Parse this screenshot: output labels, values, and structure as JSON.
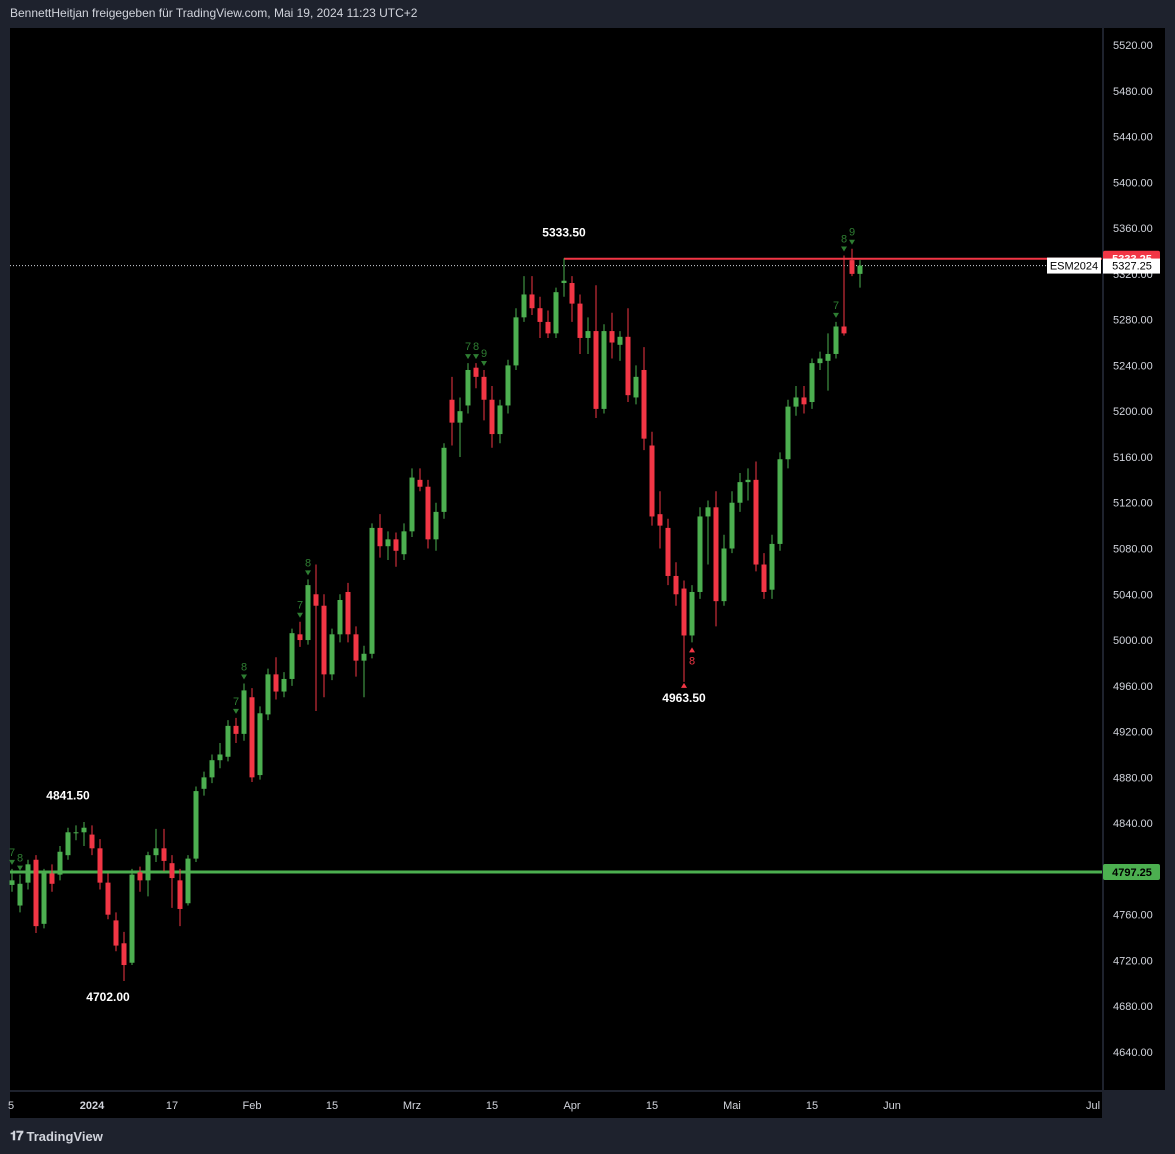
{
  "header": {
    "text": "BennettHeitjan freigegeben für TradingView.com, Mai 19, 2024 11:23 UTC+2"
  },
  "footer": {
    "logo_icon": "tradingview-logo-icon",
    "logo_text": "TradingView"
  },
  "colors": {
    "background": "#000000",
    "frame": "#1e222d",
    "up": "#4caf50",
    "down": "#f23645",
    "text": "#d1d4dc"
  },
  "chart_data": {
    "type": "candlestick",
    "symbol": "ESM2024",
    "last_price": "5327.25",
    "ylim": [
      4610,
      5530
    ],
    "y_ticks": [
      "5520.00",
      "5480.00",
      "5440.00",
      "5400.00",
      "5360.00",
      "5320.00",
      "5280.00",
      "5240.00",
      "5200.00",
      "5160.00",
      "5120.00",
      "5080.00",
      "5040.00",
      "5000.00",
      "4960.00",
      "4920.00",
      "4880.00",
      "4840.00",
      "4800.00",
      "4760.00",
      "4720.00",
      "4680.00",
      "4640.00"
    ],
    "x_ticks": [
      "5",
      "2024",
      "17",
      "Feb",
      "15",
      "Mrz",
      "15",
      "Apr",
      "15",
      "Mai",
      "15",
      "Jun",
      "Jul"
    ],
    "x_tick_index": [
      0,
      10,
      20,
      30,
      40,
      50,
      60,
      70,
      80,
      90,
      100,
      110,
      132
    ],
    "x_index_range": [
      0,
      133
    ],
    "price_labels": [
      {
        "text": "4797.25",
        "price": 4797.25,
        "color": "#4caf50",
        "text_color": "#000000"
      },
      {
        "text": "5333.25",
        "price": 5333.25,
        "color": "#f23645",
        "text_color": "#ffffff"
      }
    ],
    "horizontal_lines": [
      {
        "price": 4797.25,
        "color": "#4caf50",
        "from_index": 0,
        "style": "solid"
      },
      {
        "price": 5333.25,
        "color": "#f23645",
        "from_index": 69,
        "style": "solid"
      },
      {
        "price": 5327.25,
        "color": "#d1d4dc",
        "from_index": 0,
        "style": "dotted"
      }
    ],
    "extreme_labels": [
      {
        "text": "4841.50",
        "index": 7,
        "price": 4841.5,
        "position": "above"
      },
      {
        "text": "4702.00",
        "index": 12,
        "price": 4702.0,
        "position": "below"
      },
      {
        "text": "5333.50",
        "index": 69,
        "price": 5333.5,
        "position": "above"
      },
      {
        "text": "4963.50",
        "index": 84,
        "price": 4963.5,
        "position": "below"
      }
    ],
    "candles": [
      {
        "i": 0,
        "o": 4786,
        "h": 4800,
        "l": 4780,
        "c": 4790
      },
      {
        "i": 1,
        "o": 4768,
        "h": 4795,
        "l": 4762,
        "c": 4787
      },
      {
        "i": 2,
        "o": 4788,
        "h": 4808,
        "l": 4782,
        "c": 4804
      },
      {
        "i": 3,
        "o": 4808,
        "h": 4812,
        "l": 4744,
        "c": 4750
      },
      {
        "i": 4,
        "o": 4752,
        "h": 4800,
        "l": 4748,
        "c": 4796
      },
      {
        "i": 5,
        "o": 4796,
        "h": 4804,
        "l": 4780,
        "c": 4787
      },
      {
        "i": 6,
        "o": 4795,
        "h": 4820,
        "l": 4790,
        "c": 4815
      },
      {
        "i": 7,
        "o": 4812,
        "h": 4836,
        "l": 4808,
        "c": 4832
      },
      {
        "i": 8,
        "o": 4832,
        "h": 4838,
        "l": 4825,
        "c": 4832
      },
      {
        "i": 9,
        "o": 4832,
        "h": 4841,
        "l": 4820,
        "c": 4836
      },
      {
        "i": 10,
        "o": 4830,
        "h": 4838,
        "l": 4812,
        "c": 4818
      },
      {
        "i": 11,
        "o": 4818,
        "h": 4826,
        "l": 4782,
        "c": 4788
      },
      {
        "i": 12,
        "o": 4788,
        "h": 4796,
        "l": 4756,
        "c": 4760
      },
      {
        "i": 13,
        "o": 4755,
        "h": 4762,
        "l": 4728,
        "c": 4733
      },
      {
        "i": 14,
        "o": 4735,
        "h": 4745,
        "l": 4702,
        "c": 4716
      },
      {
        "i": 15,
        "o": 4718,
        "h": 4800,
        "l": 4716,
        "c": 4795
      },
      {
        "i": 16,
        "o": 4797,
        "h": 4802,
        "l": 4780,
        "c": 4790
      },
      {
        "i": 17,
        "o": 4790,
        "h": 4815,
        "l": 4776,
        "c": 4812
      },
      {
        "i": 18,
        "o": 4812,
        "h": 4835,
        "l": 4806,
        "c": 4818
      },
      {
        "i": 19,
        "o": 4818,
        "h": 4835,
        "l": 4798,
        "c": 4807
      },
      {
        "i": 20,
        "o": 4805,
        "h": 4812,
        "l": 4766,
        "c": 4792
      },
      {
        "i": 21,
        "o": 4790,
        "h": 4800,
        "l": 4750,
        "c": 4765
      },
      {
        "i": 22,
        "o": 4770,
        "h": 4812,
        "l": 4768,
        "c": 4809
      },
      {
        "i": 23,
        "o": 4809,
        "h": 4872,
        "l": 4806,
        "c": 4868
      },
      {
        "i": 24,
        "o": 4870,
        "h": 4885,
        "l": 4864,
        "c": 4880
      },
      {
        "i": 25,
        "o": 4880,
        "h": 4900,
        "l": 4875,
        "c": 4895
      },
      {
        "i": 26,
        "o": 4895,
        "h": 4910,
        "l": 4888,
        "c": 4900
      },
      {
        "i": 27,
        "o": 4898,
        "h": 4930,
        "l": 4894,
        "c": 4925
      },
      {
        "i": 28,
        "o": 4925,
        "h": 4932,
        "l": 4910,
        "c": 4918
      },
      {
        "i": 29,
        "o": 4918,
        "h": 4962,
        "l": 4912,
        "c": 4956
      },
      {
        "i": 30,
        "o": 4950,
        "h": 4958,
        "l": 4876,
        "c": 4880
      },
      {
        "i": 31,
        "o": 4882,
        "h": 4942,
        "l": 4878,
        "c": 4936
      },
      {
        "i": 32,
        "o": 4935,
        "h": 4975,
        "l": 4930,
        "c": 4970
      },
      {
        "i": 33,
        "o": 4970,
        "h": 4985,
        "l": 4948,
        "c": 4955
      },
      {
        "i": 34,
        "o": 4955,
        "h": 4972,
        "l": 4950,
        "c": 4966
      },
      {
        "i": 35,
        "o": 4966,
        "h": 5010,
        "l": 4960,
        "c": 5006
      },
      {
        "i": 36,
        "o": 5005,
        "h": 5016,
        "l": 4994,
        "c": 5000
      },
      {
        "i": 37,
        "o": 5000,
        "h": 5053,
        "l": 4996,
        "c": 5048
      },
      {
        "i": 38,
        "o": 5040,
        "h": 5066,
        "l": 4938,
        "c": 5030
      },
      {
        "i": 39,
        "o": 5030,
        "h": 5040,
        "l": 4950,
        "c": 4970
      },
      {
        "i": 40,
        "o": 4970,
        "h": 5010,
        "l": 4965,
        "c": 5005
      },
      {
        "i": 41,
        "o": 5005,
        "h": 5040,
        "l": 4998,
        "c": 5035
      },
      {
        "i": 42,
        "o": 5042,
        "h": 5050,
        "l": 4998,
        "c": 5005
      },
      {
        "i": 43,
        "o": 5005,
        "h": 5012,
        "l": 4968,
        "c": 4982
      },
      {
        "i": 44,
        "o": 4982,
        "h": 4995,
        "l": 4950,
        "c": 4988
      },
      {
        "i": 45,
        "o": 4988,
        "h": 5102,
        "l": 4984,
        "c": 5098
      },
      {
        "i": 46,
        "o": 5098,
        "h": 5110,
        "l": 5072,
        "c": 5082
      },
      {
        "i": 47,
        "o": 5082,
        "h": 5095,
        "l": 5070,
        "c": 5088
      },
      {
        "i": 48,
        "o": 5088,
        "h": 5094,
        "l": 5064,
        "c": 5078
      },
      {
        "i": 49,
        "o": 5075,
        "h": 5102,
        "l": 5070,
        "c": 5095
      },
      {
        "i": 50,
        "o": 5095,
        "h": 5150,
        "l": 5090,
        "c": 5142
      },
      {
        "i": 51,
        "o": 5140,
        "h": 5150,
        "l": 5130,
        "c": 5134
      },
      {
        "i": 52,
        "o": 5134,
        "h": 5140,
        "l": 5080,
        "c": 5088
      },
      {
        "i": 53,
        "o": 5088,
        "h": 5120,
        "l": 5078,
        "c": 5112
      },
      {
        "i": 54,
        "o": 5112,
        "h": 5172,
        "l": 5106,
        "c": 5168
      },
      {
        "i": 55,
        "o": 5210,
        "h": 5230,
        "l": 5170,
        "c": 5190
      },
      {
        "i": 56,
        "o": 5190,
        "h": 5212,
        "l": 5160,
        "c": 5200
      },
      {
        "i": 57,
        "o": 5205,
        "h": 5242,
        "l": 5198,
        "c": 5236
      },
      {
        "i": 58,
        "o": 5238,
        "h": 5242,
        "l": 5220,
        "c": 5230
      },
      {
        "i": 59,
        "o": 5230,
        "h": 5236,
        "l": 5192,
        "c": 5210
      },
      {
        "i": 60,
        "o": 5210,
        "h": 5222,
        "l": 5168,
        "c": 5180
      },
      {
        "i": 61,
        "o": 5180,
        "h": 5210,
        "l": 5172,
        "c": 5205
      },
      {
        "i": 62,
        "o": 5205,
        "h": 5245,
        "l": 5198,
        "c": 5240
      },
      {
        "i": 63,
        "o": 5240,
        "h": 5290,
        "l": 5236,
        "c": 5282
      },
      {
        "i": 64,
        "o": 5282,
        "h": 5318,
        "l": 5278,
        "c": 5302
      },
      {
        "i": 65,
        "o": 5302,
        "h": 5318,
        "l": 5284,
        "c": 5290
      },
      {
        "i": 66,
        "o": 5290,
        "h": 5300,
        "l": 5264,
        "c": 5278
      },
      {
        "i": 67,
        "o": 5278,
        "h": 5288,
        "l": 5264,
        "c": 5268
      },
      {
        "i": 68,
        "o": 5268,
        "h": 5308,
        "l": 5264,
        "c": 5304
      },
      {
        "i": 69,
        "o": 5312,
        "h": 5333.5,
        "l": 5300,
        "c": 5314
      },
      {
        "i": 70,
        "o": 5312,
        "h": 5318,
        "l": 5278,
        "c": 5294
      },
      {
        "i": 71,
        "o": 5294,
        "h": 5302,
        "l": 5250,
        "c": 5264
      },
      {
        "i": 72,
        "o": 5264,
        "h": 5282,
        "l": 5250,
        "c": 5270
      },
      {
        "i": 73,
        "o": 5270,
        "h": 5310,
        "l": 5194,
        "c": 5202
      },
      {
        "i": 74,
        "o": 5202,
        "h": 5276,
        "l": 5198,
        "c": 5270
      },
      {
        "i": 75,
        "o": 5270,
        "h": 5286,
        "l": 5246,
        "c": 5260
      },
      {
        "i": 76,
        "o": 5258,
        "h": 5270,
        "l": 5244,
        "c": 5265
      },
      {
        "i": 77,
        "o": 5265,
        "h": 5290,
        "l": 5208,
        "c": 5214
      },
      {
        "i": 78,
        "o": 5212,
        "h": 5240,
        "l": 5206,
        "c": 5230
      },
      {
        "i": 79,
        "o": 5236,
        "h": 5256,
        "l": 5166,
        "c": 5176
      },
      {
        "i": 80,
        "o": 5170,
        "h": 5182,
        "l": 5100,
        "c": 5108
      },
      {
        "i": 81,
        "o": 5110,
        "h": 5130,
        "l": 5080,
        "c": 5100
      },
      {
        "i": 82,
        "o": 5098,
        "h": 5106,
        "l": 5048,
        "c": 5056
      },
      {
        "i": 83,
        "o": 5056,
        "h": 5068,
        "l": 5030,
        "c": 5040
      },
      {
        "i": 84,
        "o": 5045,
        "h": 5052,
        "l": 4963.5,
        "c": 5004
      },
      {
        "i": 85,
        "o": 5004,
        "h": 5048,
        "l": 4998,
        "c": 5042
      },
      {
        "i": 86,
        "o": 5042,
        "h": 5116,
        "l": 5036,
        "c": 5108
      },
      {
        "i": 87,
        "o": 5108,
        "h": 5122,
        "l": 5066,
        "c": 5116
      },
      {
        "i": 88,
        "o": 5116,
        "h": 5130,
        "l": 5012,
        "c": 5034
      },
      {
        "i": 89,
        "o": 5034,
        "h": 5092,
        "l": 5030,
        "c": 5080
      },
      {
        "i": 90,
        "o": 5080,
        "h": 5130,
        "l": 5076,
        "c": 5120
      },
      {
        "i": 91,
        "o": 5120,
        "h": 5146,
        "l": 5112,
        "c": 5138
      },
      {
        "i": 92,
        "o": 5138,
        "h": 5150,
        "l": 5122,
        "c": 5140
      },
      {
        "i": 93,
        "o": 5140,
        "h": 5156,
        "l": 5060,
        "c": 5066
      },
      {
        "i": 94,
        "o": 5066,
        "h": 5076,
        "l": 5036,
        "c": 5042
      },
      {
        "i": 95,
        "o": 5044,
        "h": 5092,
        "l": 5036,
        "c": 5084
      },
      {
        "i": 96,
        "o": 5084,
        "h": 5164,
        "l": 5078,
        "c": 5158
      },
      {
        "i": 97,
        "o": 5158,
        "h": 5210,
        "l": 5150,
        "c": 5204
      },
      {
        "i": 98,
        "o": 5204,
        "h": 5222,
        "l": 5196,
        "c": 5212
      },
      {
        "i": 99,
        "o": 5212,
        "h": 5222,
        "l": 5198,
        "c": 5206
      },
      {
        "i": 100,
        "o": 5208,
        "h": 5246,
        "l": 5202,
        "c": 5242
      },
      {
        "i": 101,
        "o": 5242,
        "h": 5252,
        "l": 5236,
        "c": 5246
      },
      {
        "i": 102,
        "o": 5244,
        "h": 5268,
        "l": 5218,
        "c": 5250
      },
      {
        "i": 103,
        "o": 5250,
        "h": 5278,
        "l": 5246,
        "c": 5274
      },
      {
        "i": 104,
        "o": 5274,
        "h": 5336,
        "l": 5266,
        "c": 5268
      },
      {
        "i": 105,
        "o": 5332,
        "h": 5342,
        "l": 5318,
        "c": 5320
      },
      {
        "i": 106,
        "o": 5320,
        "h": 5332,
        "l": 5308,
        "c": 5327.25
      }
    ],
    "td_counts": [
      {
        "index": 0,
        "text": "7",
        "color": "#2e7d32"
      },
      {
        "index": 1,
        "text": "8",
        "color": "#2e7d32"
      },
      {
        "index": 28,
        "text": "7",
        "color": "#2e7d32"
      },
      {
        "index": 29,
        "text": "8",
        "color": "#2e7d32"
      },
      {
        "index": 36,
        "text": "7",
        "color": "#2e7d32"
      },
      {
        "index": 37,
        "text": "8",
        "color": "#2e7d32"
      },
      {
        "index": 57,
        "text": "7",
        "color": "#2e7d32"
      },
      {
        "index": 58,
        "text": "8",
        "color": "#2e7d32"
      },
      {
        "index": 59,
        "text": "9",
        "color": "#2e7d32"
      },
      {
        "index": 103,
        "text": "7",
        "color": "#2e7d32"
      },
      {
        "index": 104,
        "text": "8",
        "color": "#2e7d32"
      },
      {
        "index": 105,
        "text": "9",
        "color": "#2e7d32"
      },
      {
        "index": 85,
        "text": "8",
        "color": "#f23645",
        "below": true
      }
    ]
  }
}
